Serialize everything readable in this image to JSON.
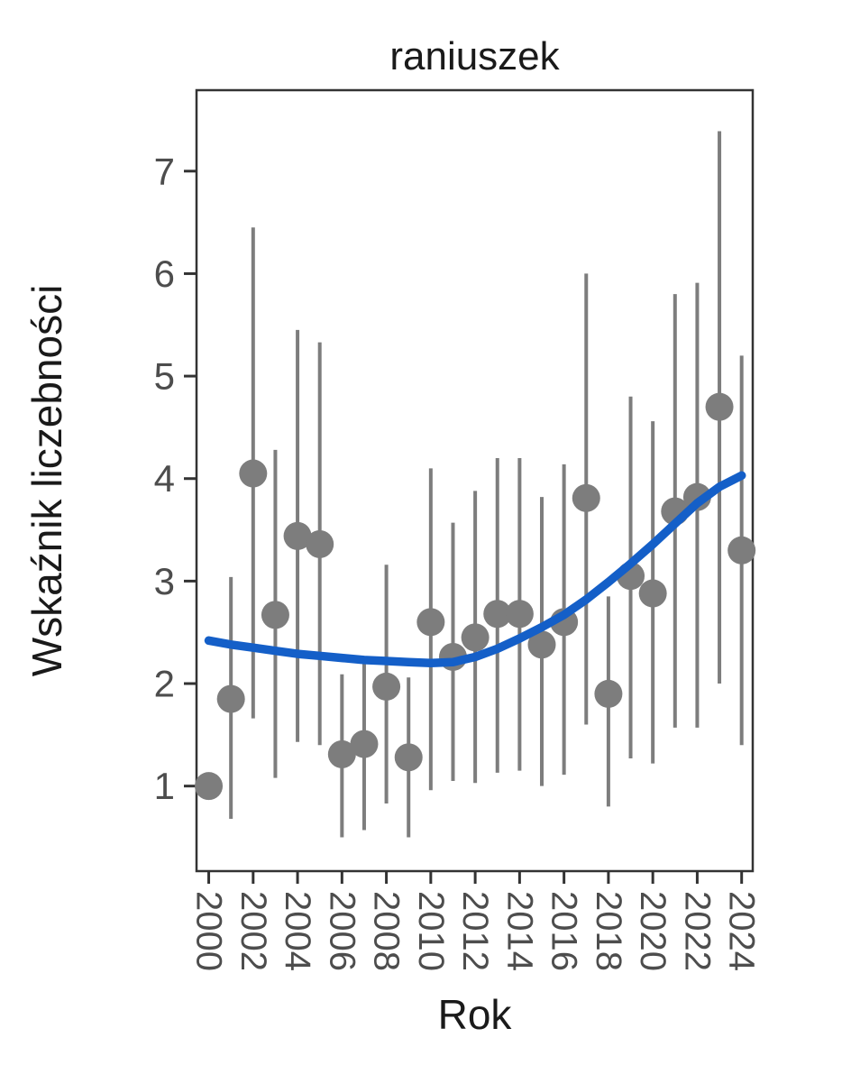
{
  "chart_data": {
    "type": "scatter",
    "title": "raniuszek",
    "xlabel": "Rok",
    "ylabel": "Wskaźnik liczebności",
    "grid": false,
    "legend": "none",
    "xlim": [
      1999.45,
      2024.5
    ],
    "ylim": [
      0.17,
      7.79
    ],
    "x_ticks": [
      2000,
      2002,
      2004,
      2006,
      2008,
      2010,
      2012,
      2014,
      2016,
      2018,
      2020,
      2022,
      2024
    ],
    "y_ticks": [
      1,
      2,
      3,
      4,
      5,
      6,
      7
    ],
    "series": [
      {
        "name": "abundance-index-points",
        "type": "scatter-with-error-bars",
        "points": [
          {
            "year": 2000,
            "value": 1.0,
            "lo": null,
            "hi": null
          },
          {
            "year": 2001,
            "value": 1.85,
            "lo": 0.68,
            "hi": 3.04
          },
          {
            "year": 2002,
            "value": 4.05,
            "lo": 1.66,
            "hi": 6.45
          },
          {
            "year": 2003,
            "value": 2.67,
            "lo": 1.08,
            "hi": 4.28
          },
          {
            "year": 2004,
            "value": 3.44,
            "lo": 1.43,
            "hi": 5.45
          },
          {
            "year": 2005,
            "value": 3.36,
            "lo": 1.4,
            "hi": 5.33
          },
          {
            "year": 2006,
            "value": 1.31,
            "lo": 0.5,
            "hi": 2.09
          },
          {
            "year": 2007,
            "value": 1.41,
            "lo": 0.57,
            "hi": 2.2
          },
          {
            "year": 2008,
            "value": 1.97,
            "lo": 0.83,
            "hi": 3.16
          },
          {
            "year": 2009,
            "value": 1.28,
            "lo": 0.5,
            "hi": 2.06
          },
          {
            "year": 2010,
            "value": 2.6,
            "lo": 0.96,
            "hi": 4.1
          },
          {
            "year": 2011,
            "value": 2.26,
            "lo": 1.05,
            "hi": 3.57
          },
          {
            "year": 2012,
            "value": 2.45,
            "lo": 1.03,
            "hi": 3.88
          },
          {
            "year": 2013,
            "value": 2.68,
            "lo": 1.13,
            "hi": 4.2
          },
          {
            "year": 2014,
            "value": 2.68,
            "lo": 1.15,
            "hi": 4.2
          },
          {
            "year": 2015,
            "value": 2.38,
            "lo": 1.0,
            "hi": 3.82
          },
          {
            "year": 2016,
            "value": 2.6,
            "lo": 1.11,
            "hi": 4.14
          },
          {
            "year": 2017,
            "value": 3.81,
            "lo": 1.6,
            "hi": 6.0
          },
          {
            "year": 2018,
            "value": 1.9,
            "lo": 0.8,
            "hi": 2.85
          },
          {
            "year": 2019,
            "value": 3.05,
            "lo": 1.27,
            "hi": 4.8
          },
          {
            "year": 2020,
            "value": 2.88,
            "lo": 1.22,
            "hi": 4.56
          },
          {
            "year": 2021,
            "value": 3.68,
            "lo": 1.57,
            "hi": 5.8
          },
          {
            "year": 2022,
            "value": 3.82,
            "lo": 1.57,
            "hi": 5.91
          },
          {
            "year": 2023,
            "value": 4.7,
            "lo": 2.0,
            "hi": 7.39
          },
          {
            "year": 2024,
            "value": 3.3,
            "lo": 1.4,
            "hi": 5.2
          }
        ]
      },
      {
        "name": "smoothed-trend",
        "type": "line",
        "x": [
          2000,
          2001,
          2002,
          2003,
          2004,
          2005,
          2006,
          2007,
          2008,
          2009,
          2010,
          2011,
          2012,
          2013,
          2014,
          2015,
          2016,
          2017,
          2018,
          2019,
          2020,
          2021,
          2022,
          2023,
          2024
        ],
        "y": [
          2.42,
          2.38,
          2.35,
          2.32,
          2.29,
          2.27,
          2.25,
          2.23,
          2.22,
          2.21,
          2.2,
          2.21,
          2.26,
          2.34,
          2.44,
          2.55,
          2.67,
          2.82,
          2.99,
          3.17,
          3.36,
          3.56,
          3.76,
          3.92,
          4.03
        ]
      }
    ],
    "colors": {
      "point": "#7d7d7d",
      "error_bar": "#7d7d7d",
      "trend": "#145fc8",
      "panel_border": "#333333",
      "tick_mark": "#333333",
      "tick_label": "#4d4d4d",
      "title_text": "#1a1a1a",
      "background": "#ffffff"
    }
  }
}
